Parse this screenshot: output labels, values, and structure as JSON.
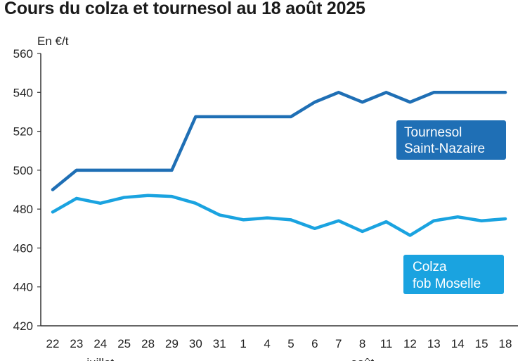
{
  "title": "Cours du colza et tournesol au 18 août 2025",
  "chart_data": {
    "type": "line",
    "unit_label": "En €/t",
    "ylim": [
      420,
      560
    ],
    "yticks": [
      420,
      440,
      460,
      480,
      500,
      520,
      540,
      560
    ],
    "categories": [
      "22",
      "23",
      "24",
      "25",
      "28",
      "29",
      "30",
      "31",
      "1",
      "4",
      "5",
      "6",
      "7",
      "8",
      "11",
      "12",
      "13",
      "14",
      "15",
      "18"
    ],
    "month_labels": [
      {
        "label": "juillet",
        "at_index": 2
      },
      {
        "label": "août",
        "at_index": 13
      }
    ],
    "grid": false,
    "series": [
      {
        "name_lines": [
          "Tournesol",
          "Saint-Nazaire"
        ],
        "color": "#1f6fb5",
        "values": [
          490,
          500,
          500,
          500,
          500,
          500,
          527.5,
          527.5,
          527.5,
          527.5,
          527.5,
          535,
          540,
          535,
          540,
          535,
          540,
          540,
          540,
          540
        ]
      },
      {
        "name_lines": [
          "Colza",
          "fob Moselle"
        ],
        "color": "#1aa3e0",
        "values": [
          478.5,
          485.5,
          483,
          486,
          487,
          486.5,
          483,
          477,
          474.5,
          475.5,
          474.5,
          470,
          474,
          468.5,
          473.5,
          466.5,
          474,
          476,
          474,
          475
        ]
      }
    ]
  }
}
